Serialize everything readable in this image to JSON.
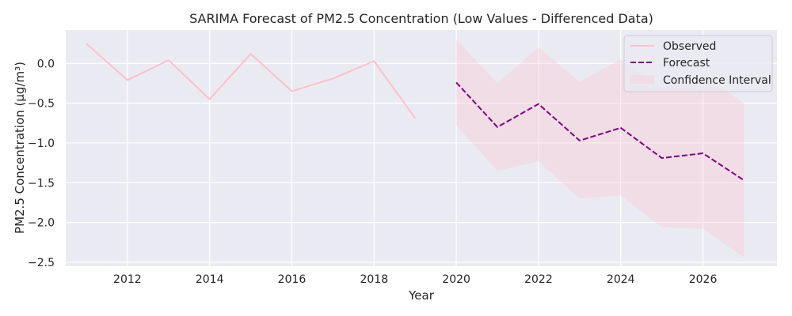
{
  "chart_data": {
    "type": "line",
    "title": "SARIMA Forecast of PM2.5 Concentration (Low Values - Differenced Data)",
    "xlabel": "Year",
    "ylabel": "PM2.5 Concentration (µg/m³)",
    "xlim": [
      2010.5,
      2027.8
    ],
    "ylim": [
      -2.55,
      0.42
    ],
    "xticks": [
      2012,
      2014,
      2016,
      2018,
      2020,
      2022,
      2024,
      2026
    ],
    "yticks": [
      0.0,
      -0.5,
      -1.0,
      -1.5,
      -2.0,
      -2.5
    ],
    "ytick_labels": [
      "0.0",
      "−0.5",
      "−1.0",
      "−1.5",
      "−2.0",
      "−2.5"
    ],
    "grid": true,
    "legend_position": "top-right",
    "series": [
      {
        "name": "Observed",
        "style": "solid",
        "color": "#ffc0cb",
        "x": [
          2011,
          2012,
          2013,
          2014,
          2015,
          2016,
          2017,
          2018,
          2019
        ],
        "y": [
          0.25,
          -0.21,
          0.04,
          -0.45,
          0.12,
          -0.35,
          -0.19,
          0.03,
          -0.69
        ]
      },
      {
        "name": "Forecast",
        "style": "dashed",
        "color": "#800080",
        "x": [
          2020,
          2021,
          2022,
          2023,
          2024,
          2025,
          2026,
          2027
        ],
        "y": [
          -0.24,
          -0.8,
          -0.51,
          -0.97,
          -0.81,
          -1.19,
          -1.13,
          -1.47
        ]
      }
    ],
    "confidence_interval": {
      "name": "Confidence Interval",
      "color": "#ffc0cb",
      "x": [
        2020,
        2021,
        2022,
        2023,
        2024,
        2025,
        2026,
        2027
      ],
      "upper": [
        0.3,
        -0.25,
        0.2,
        -0.23,
        0.05,
        -0.3,
        -0.15,
        -0.5
      ],
      "lower": [
        -0.78,
        -1.35,
        -1.23,
        -1.7,
        -1.66,
        -2.06,
        -2.08,
        -2.44
      ]
    }
  }
}
